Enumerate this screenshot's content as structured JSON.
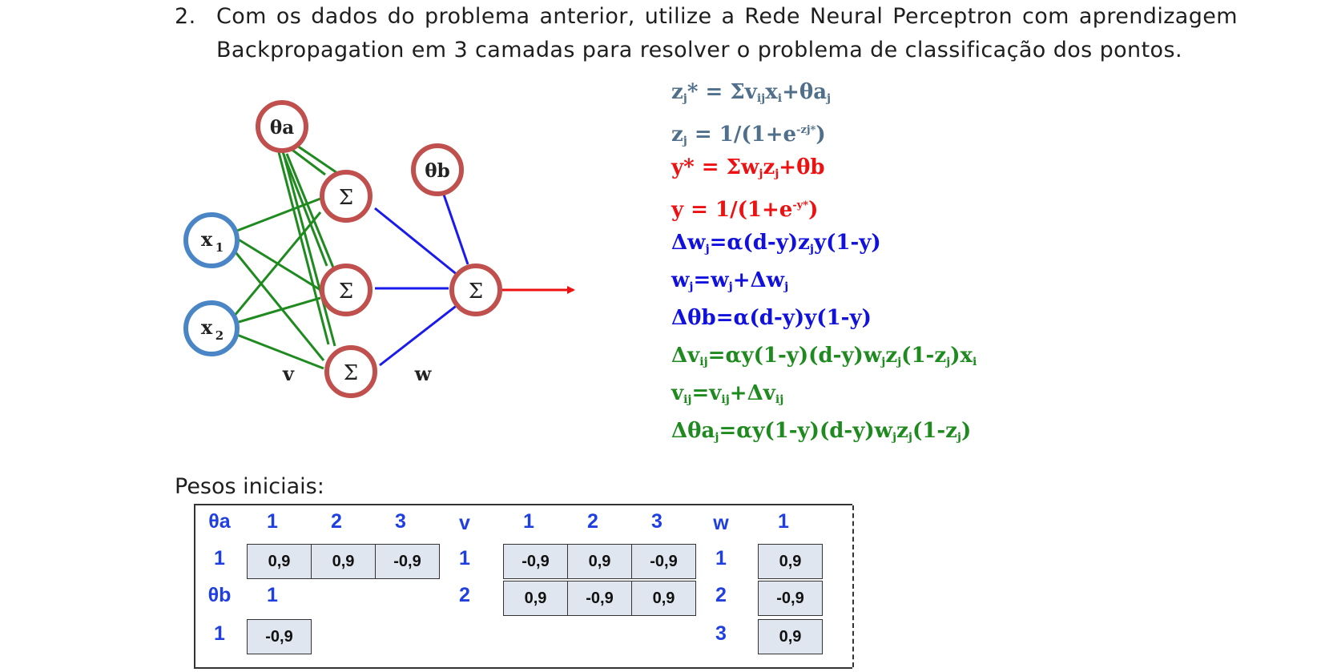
{
  "question": {
    "number": "2.",
    "text": "Com os dados do problema anterior, utilize a Rede Neural Perceptron com aprendizagem Backpropagation em 3 camadas para resolver o problema de classificação dos pontos."
  },
  "diagram": {
    "nodes": {
      "bias_a": "θa",
      "bias_b": "θb",
      "x1": "x",
      "x1_sub": "1",
      "x2": "x",
      "x2_sub": "2",
      "sum": "Σ"
    },
    "labels": {
      "v": "v",
      "w": "w"
    },
    "colors": {
      "input_ring": "#4a86c6",
      "hidden_ring": "#c0504d",
      "green_edges": "#1f8a1f",
      "blue_edges": "#1a1aee",
      "output_arrow": "#ee1111"
    }
  },
  "formulas": [
    {
      "color": "gray",
      "text": "zj* = Σvijxi+θaj"
    },
    {
      "color": "gray",
      "text": "zj = 1/(1+e-zj*)"
    },
    {
      "color": "red",
      "text": "y* = Σwjzj+θb"
    },
    {
      "color": "red",
      "text": "y = 1/(1+e-y*)"
    },
    {
      "color": "blue",
      "text": "Δwj=α(d-y)zjy(1-y)"
    },
    {
      "color": "blue",
      "text": "wj=wj+Δwj"
    },
    {
      "color": "blue",
      "text": "Δθb=α(d-y)y(1-y)"
    },
    {
      "color": "green",
      "text": "Δvij=αy(1-y)(d-y)wjzj(1-zj)xi"
    },
    {
      "color": "green",
      "text": "vij=vij+Δvij"
    },
    {
      "color": "green",
      "text": "Δθaj=αy(1-y)(d-y)wjzj(1-zj)"
    }
  ],
  "pesos_label": "Pesos iniciais:",
  "weights": {
    "theta_a": {
      "header": "θa",
      "cols": [
        "1",
        "2",
        "3"
      ],
      "row_label": "1",
      "values": [
        "0,9",
        "0,9",
        "-0,9"
      ]
    },
    "theta_b": {
      "header": "θb",
      "col": "1",
      "row_label": "1",
      "value": "-0,9"
    },
    "v": {
      "header": "v",
      "cols": [
        "1",
        "2",
        "3"
      ],
      "rows": [
        {
          "label": "1",
          "values": [
            "-0,9",
            "0,9",
            "-0,9"
          ]
        },
        {
          "label": "2",
          "values": [
            "0,9",
            "-0,9",
            "0,9"
          ]
        }
      ]
    },
    "w": {
      "header": "w",
      "col": "1",
      "rows": [
        {
          "label": "1",
          "value": "0,9"
        },
        {
          "label": "2",
          "value": "-0,9"
        },
        {
          "label": "3",
          "value": "0,9"
        }
      ]
    }
  }
}
